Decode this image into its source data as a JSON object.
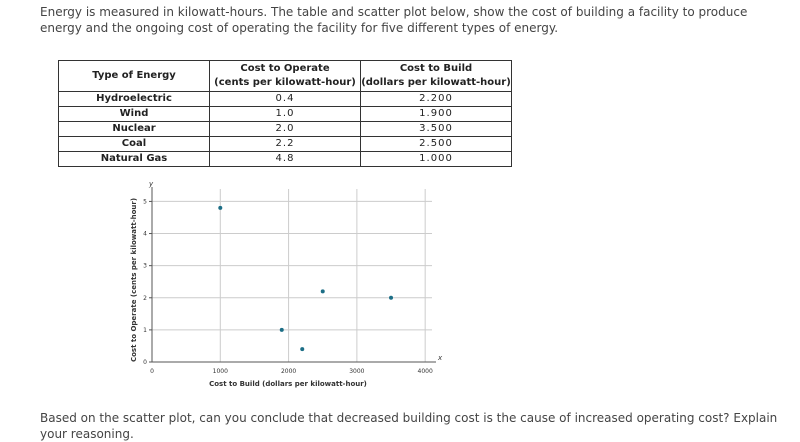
{
  "intro": "Energy is measured in kilowatt-hours. The table and scatter plot below, show the cost of building a facility to produce energy and the ongoing cost of operating the facility for five different types of energy.",
  "table": {
    "header": [
      [
        "Type of Energy"
      ],
      [
        "Cost to Operate",
        "(cents per kilowatt-hour)"
      ],
      [
        "Cost to Build",
        "(dollars per kilowatt-hour)"
      ]
    ],
    "rows": [
      [
        "Hydroelectric",
        "0.4",
        "2.200"
      ],
      [
        "Wind",
        "1.0",
        "1.900"
      ],
      [
        "Nuclear",
        "2.0",
        "3.500"
      ],
      [
        "Coal",
        "2.2",
        "2.500"
      ],
      [
        "Natural Gas",
        "4.8",
        "1.000"
      ]
    ]
  },
  "chart_data": {
    "type": "scatter",
    "x_label": "Cost to Build (dollars per kilowatt-hour)",
    "y_label": "Cost to Operate (cents per kilowatt-hour)",
    "x_axis_name": "x",
    "y_axis_name": "y",
    "x": [
      2200,
      1900,
      3500,
      2500,
      1000
    ],
    "values": [
      0.4,
      1.0,
      2.0,
      2.2,
      4.8
    ],
    "color": "#1c6e86",
    "xlim": [
      0,
      4100
    ],
    "ylim": [
      0,
      5.2
    ],
    "xticks": [
      0,
      1000,
      2000,
      3000,
      4000
    ],
    "yticks": [
      0,
      1,
      2,
      3,
      4,
      5
    ],
    "grid": true
  },
  "question": "Based on the scatter plot, can you conclude that decreased building cost is the cause of increased operating cost? Explain your reasoning."
}
